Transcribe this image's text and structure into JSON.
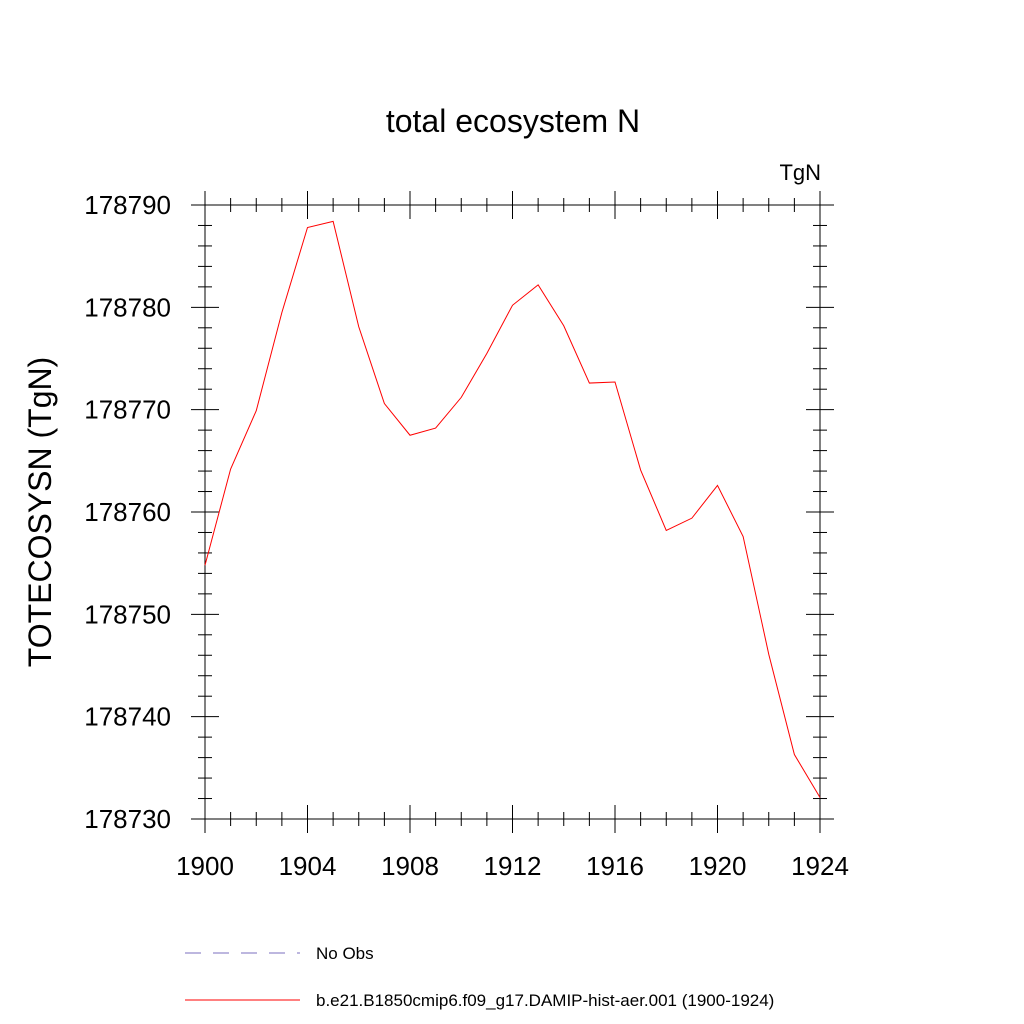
{
  "chart_data": {
    "type": "line",
    "title": "total ecosystem N",
    "units_label": "TgN",
    "ylabel": "TOTECOSYSN  (TgN)",
    "xlabel": "",
    "xlim": [
      1900,
      1924
    ],
    "ylim": [
      178730,
      178790
    ],
    "x_ticks": [
      "1900",
      "1904",
      "1908",
      "1912",
      "1916",
      "1920",
      "1924"
    ],
    "y_ticks": [
      "178730",
      "178740",
      "178750",
      "178760",
      "178770",
      "178780",
      "178790"
    ],
    "x_tick_values": [
      1900,
      1904,
      1908,
      1912,
      1916,
      1920,
      1924
    ],
    "y_tick_values": [
      178730,
      178740,
      178750,
      178760,
      178770,
      178780,
      178790
    ],
    "x_minor_step": 1,
    "y_minor_step": 2,
    "grid": false,
    "legend_position": "bottom",
    "series": [
      {
        "name": "b.e21.B1850cmip6.f09_g17.DAMIP-hist-aer.001 (1900-1924)",
        "color": "#ff0000",
        "dash": "solid",
        "x": [
          1900,
          1901,
          1902,
          1903,
          1904,
          1905,
          1906,
          1907,
          1908,
          1909,
          1910,
          1911,
          1912,
          1913,
          1914,
          1915,
          1916,
          1917,
          1918,
          1919,
          1920,
          1921,
          1922,
          1923,
          1924
        ],
        "values": [
          178754.8,
          178764.2,
          178769.9,
          178779.5,
          178787.8,
          178788.4,
          178778.1,
          178770.6,
          178767.5,
          178768.2,
          178771.2,
          178775.5,
          178780.2,
          178782.2,
          178778.2,
          178772.6,
          178772.7,
          178764.1,
          178758.2,
          178759.4,
          178762.6,
          178757.6,
          178746.1,
          178736.3,
          178732.1
        ]
      }
    ],
    "legend": [
      {
        "label": "No Obs",
        "color": "#7b6fbf",
        "dash": "dashed"
      },
      {
        "label": "b.e21.B1850cmip6.f09_g17.DAMIP-hist-aer.001 (1900-1924)",
        "color": "#ff0000",
        "dash": "solid"
      }
    ]
  }
}
